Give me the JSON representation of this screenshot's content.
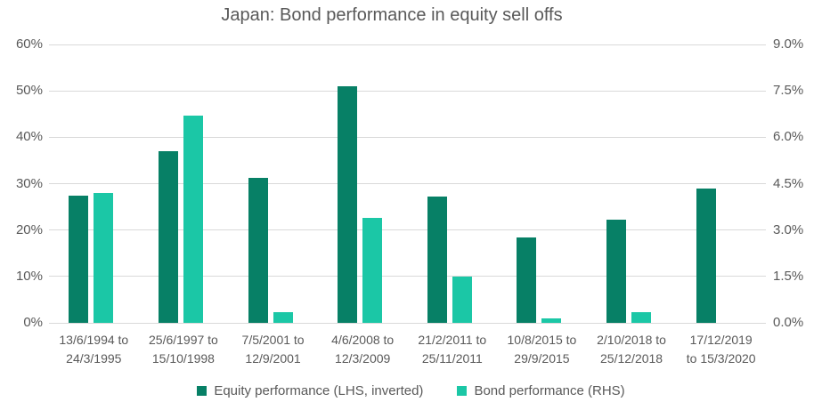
{
  "colors": {
    "equity": "#078066",
    "bond": "#1BC7A6",
    "grid": "#D9D9D9",
    "text": "#595959",
    "background": "#FFFFFF"
  },
  "chart_data": {
    "type": "bar",
    "title": "Japan: Bond performance in equity sell offs",
    "grid": "horizontal-on",
    "legend_position": "bottom",
    "categories": [
      [
        "13/6/1994 to",
        "24/3/1995"
      ],
      [
        "25/6/1997 to",
        "15/10/1998"
      ],
      [
        "7/5/2001 to",
        "12/9/2001"
      ],
      [
        "4/6/2008 to",
        "12/3/2009"
      ],
      [
        "21/2/2011 to",
        "25/11/2011"
      ],
      [
        "10/8/2015 to",
        "29/9/2015"
      ],
      [
        "2/10/2018 to",
        "25/12/2018"
      ],
      [
        "17/12/2019",
        "to 15/3/2020"
      ]
    ],
    "left_axis": {
      "min": 0,
      "max": 60,
      "ticks": [
        "0%",
        "10%",
        "20%",
        "30%",
        "40%",
        "50%",
        "60%"
      ]
    },
    "right_axis": {
      "min": 0,
      "max": 9,
      "ticks": [
        "0.0%",
        "1.5%",
        "3.0%",
        "4.5%",
        "6.0%",
        "7.5%",
        "9.0%"
      ]
    },
    "series": [
      {
        "key": "equity",
        "name": "Equity performance (LHS, inverted)",
        "axis": "left",
        "color": "#078066",
        "values": [
          27.5,
          37.0,
          31.3,
          51.0,
          27.3,
          18.4,
          22.3,
          29.0
        ]
      },
      {
        "key": "bond",
        "name": "Bond performance (RHS)",
        "axis": "right",
        "color": "#1BC7A6",
        "values": [
          4.2,
          6.7,
          0.35,
          3.4,
          1.5,
          0.13,
          0.35,
          null
        ]
      }
    ]
  }
}
